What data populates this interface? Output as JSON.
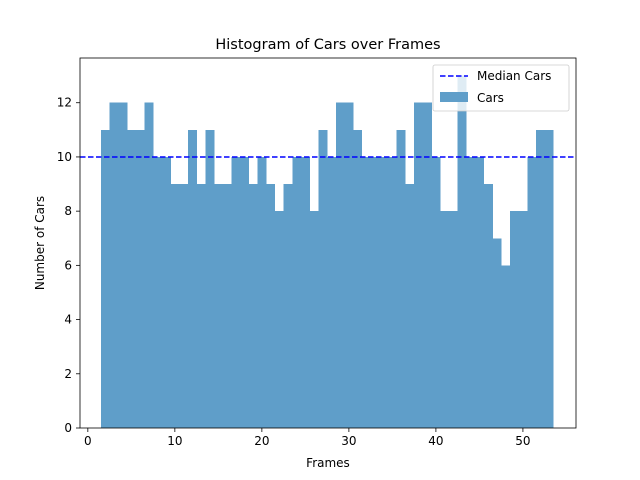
{
  "chart_data": {
    "type": "bar",
    "title": "Histogram of Cars over Frames",
    "xlabel": "Frames",
    "ylabel": "Number of Cars",
    "xlim": [
      -0.9,
      56.1
    ],
    "ylim": [
      0,
      13.65
    ],
    "xticks": [
      "0",
      "10",
      "20",
      "30",
      "40",
      "50"
    ],
    "yticks": [
      "0",
      "2",
      "4",
      "6",
      "8",
      "10",
      "12"
    ],
    "x": [
      2,
      3,
      4,
      5,
      6,
      7,
      8,
      9,
      10,
      11,
      12,
      13,
      14,
      15,
      16,
      17,
      18,
      19,
      20,
      21,
      22,
      23,
      24,
      25,
      26,
      27,
      28,
      29,
      30,
      31,
      32,
      33,
      34,
      35,
      36,
      37,
      38,
      39,
      40,
      41,
      42,
      43,
      44,
      45,
      46,
      47,
      48,
      49,
      50,
      51,
      52,
      53
    ],
    "series": [
      {
        "name": "Cars",
        "color": "#5f9ec9",
        "values": [
          11,
          12,
          12,
          11,
          11,
          12,
          10,
          10,
          9,
          9,
          11,
          9,
          11,
          9,
          9,
          10,
          10,
          9,
          10,
          9,
          8,
          9,
          10,
          10,
          8,
          11,
          10,
          12,
          12,
          11,
          10,
          10,
          10,
          10,
          11,
          9,
          12,
          12,
          10,
          8,
          8,
          13,
          10,
          10,
          9,
          7,
          6,
          8,
          8,
          10,
          11,
          11
        ]
      }
    ],
    "reference_lines": [
      {
        "name": "Median Cars",
        "y": 10,
        "color": "#0000ff",
        "style": "dashed"
      }
    ],
    "grid": false,
    "legend_position": "top-right"
  }
}
